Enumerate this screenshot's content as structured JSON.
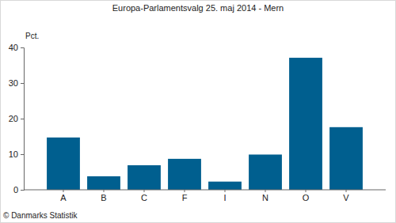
{
  "chart_data": {
    "type": "bar",
    "title": "Europa-Parlamentsvalg 25. maj 2014 - Mern",
    "y_label": "Pct.",
    "categories": [
      "A",
      "B",
      "C",
      "F",
      "I",
      "N",
      "O",
      "V"
    ],
    "values": [
      14.7,
      3.8,
      6.9,
      8.7,
      2.3,
      9.9,
      37.1,
      17.6
    ],
    "color": "#005f8f",
    "ylim": [
      0,
      40
    ],
    "yticks": [
      0,
      10,
      20,
      30,
      40
    ],
    "grid": false,
    "annotations": [
      "© Danmarks Statistik"
    ]
  }
}
